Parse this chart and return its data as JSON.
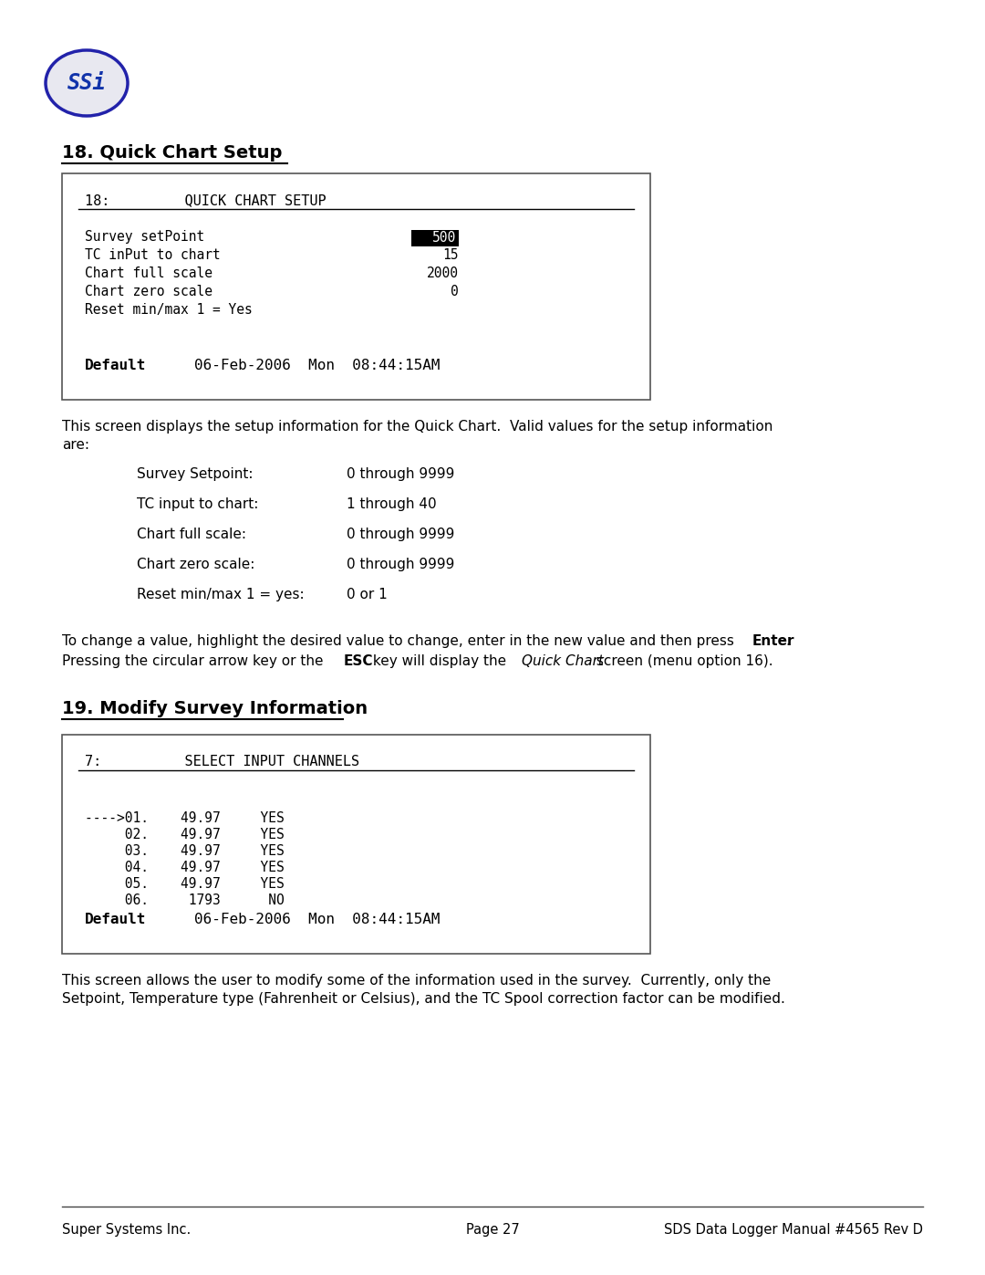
{
  "bg_color": "#ffffff",
  "text_color": "#000000",
  "mono_font": "DejaVu Sans Mono",
  "sans_font": "DejaVu Sans",
  "logo_text": "SSi",
  "section18_title": "18. Quick Chart Setup",
  "section19_title": "19. Modify Survey Information",
  "screen1_header": "18:         QUICK CHART SETUP",
  "screen1_val_setpoint": "500",
  "screen1_val_tc": "15",
  "screen1_val_full": "2000",
  "screen1_val_zero": "0",
  "screen1_footer_left": "Default",
  "screen1_footer_dt": "06-Feb-2006  Mon  08:44:15AM",
  "desc1_line1": "This screen displays the setup information for the Quick Chart.  Valid values for the setup information",
  "desc1_line2": "are:",
  "table_items": [
    [
      "Survey Setpoint:",
      "0 through 9999"
    ],
    [
      "TC input to chart:",
      "1 through 40"
    ],
    [
      "Chart full scale:",
      "0 through 9999"
    ],
    [
      "Chart zero scale:",
      "0 through 9999"
    ],
    [
      "Reset min/max 1 = yes:",
      "0 or 1"
    ]
  ],
  "screen2_header": "7:          SELECT INPUT CHANNELS",
  "screen2_lines": [
    "---->01.    49.97     YES",
    "     02.    49.97     YES",
    "     03.    49.97     YES",
    "     04.    49.97     YES",
    "     05.    49.97     YES",
    "     06.     1793      NO"
  ],
  "screen2_footer_left": "Default",
  "screen2_footer_dt": "06-Feb-2006  Mon  08:44:15AM",
  "desc2_line1": "This screen allows the user to modify some of the information used in the survey.  Currently, only the",
  "desc2_line2": "Setpoint, Temperature type (Fahrenheit or Celsius), and the TC Spool correction factor can be modified.",
  "footer_left": "Super Systems Inc.",
  "footer_center": "Page 27",
  "footer_right": "SDS Data Logger Manual #4565 Rev D"
}
